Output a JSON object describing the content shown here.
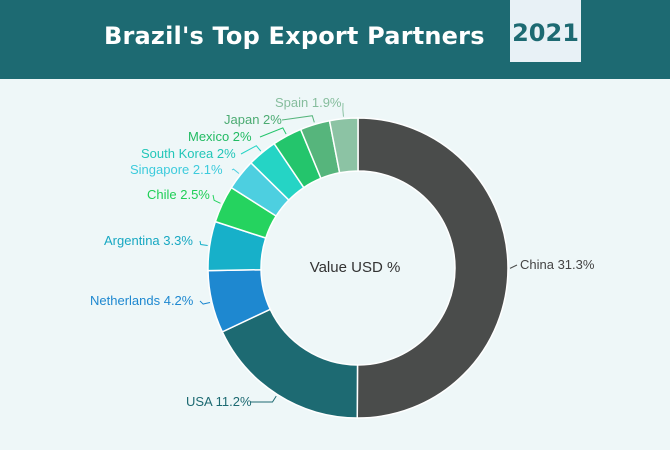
{
  "chart_data": {
    "type": "pie",
    "title": "Brazil's Top Export Partners",
    "year": "2021",
    "center_label": "Value USD %",
    "categories": [
      "China",
      "USA",
      "Netherlands",
      "Argentina",
      "Chile",
      "Singapore",
      "South Korea",
      "Mexico",
      "Japan",
      "Spain"
    ],
    "values": [
      31.3,
      11.2,
      4.2,
      3.3,
      2.5,
      2.1,
      2,
      2,
      2,
      1.9
    ],
    "labels": [
      "China 31.3%",
      "USA 11.2%",
      "Netherlands 4.2%",
      "Argentina 3.3%",
      "Chile 2.5%",
      "Singapore 2.1%",
      "South Korea 2%",
      "Mexico 2%",
      "Japan 2%",
      "Spain 1.9%"
    ],
    "colors": [
      "#4a4c4b",
      "#1d6a72",
      "#1e88d0",
      "#17b0c9",
      "#25d35f",
      "#4dcfe0",
      "#25d4c5",
      "#24c56c",
      "#56b57c",
      "#8cc3a4"
    ],
    "label_colors": [
      "#444444",
      "#1d6a72",
      "#1e88d0",
      "#17a8c2",
      "#1fcf56",
      "#3dcbdc",
      "#22c6b8",
      "#22bb63",
      "#4bab72",
      "#86bd9d"
    ]
  }
}
